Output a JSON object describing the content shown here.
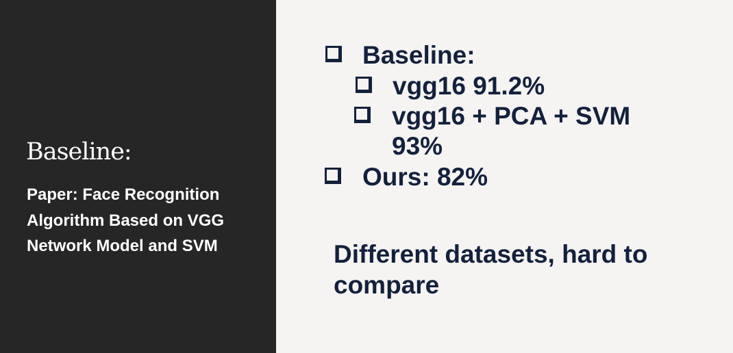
{
  "sidebar": {
    "title": "Baseline:",
    "subtitle": "Paper: Face Recognition Algorithm Based on VGG Network Model and SVM"
  },
  "main": {
    "bullets": [
      {
        "label": "Baseline:",
        "icon": "checkbox-icon",
        "level": 1
      },
      {
        "label": "vgg16 91.2%",
        "icon": "checkbox-icon",
        "level": 2
      },
      {
        "label": "vgg16 + PCA + SVM 93%",
        "icon": "checkbox-icon",
        "level": 2
      },
      {
        "label": "Ours: 82%",
        "icon": "checkbox-icon",
        "level": 1
      }
    ],
    "note": "Different datasets, hard to compare"
  },
  "colors": {
    "sidebar_background": "#262626",
    "page_background": "#f5f4f3",
    "sidebar_text": "#ffffff",
    "main_text": "#14213d"
  }
}
